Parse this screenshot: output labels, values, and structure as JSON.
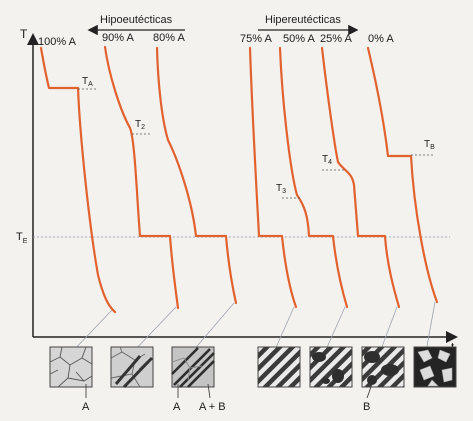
{
  "axes": {
    "y_label": "T",
    "x_label": "t",
    "te_label": "T",
    "te_sub": "E"
  },
  "groups": {
    "hypo": "Hipoeutécticas",
    "hyper": "Hipereutécticas"
  },
  "curves": [
    {
      "label": "100% A"
    },
    {
      "label": "90% A"
    },
    {
      "label": "80% A"
    },
    {
      "label": "75% A"
    },
    {
      "label": "50% A"
    },
    {
      "label": "25% A"
    },
    {
      "label": "0% A"
    }
  ],
  "temperature_marks": [
    {
      "main": "T",
      "sub": "A"
    },
    {
      "main": "T",
      "sub": "2"
    },
    {
      "main": "T",
      "sub": "3"
    },
    {
      "main": "T",
      "sub": "4"
    },
    {
      "main": "T",
      "sub": "B"
    }
  ],
  "micro_labels": [
    "A",
    "A",
    "A + B",
    "B"
  ],
  "colors": {
    "curve": "#e2622f",
    "axis": "#222222",
    "guide": "#8a97a8"
  }
}
